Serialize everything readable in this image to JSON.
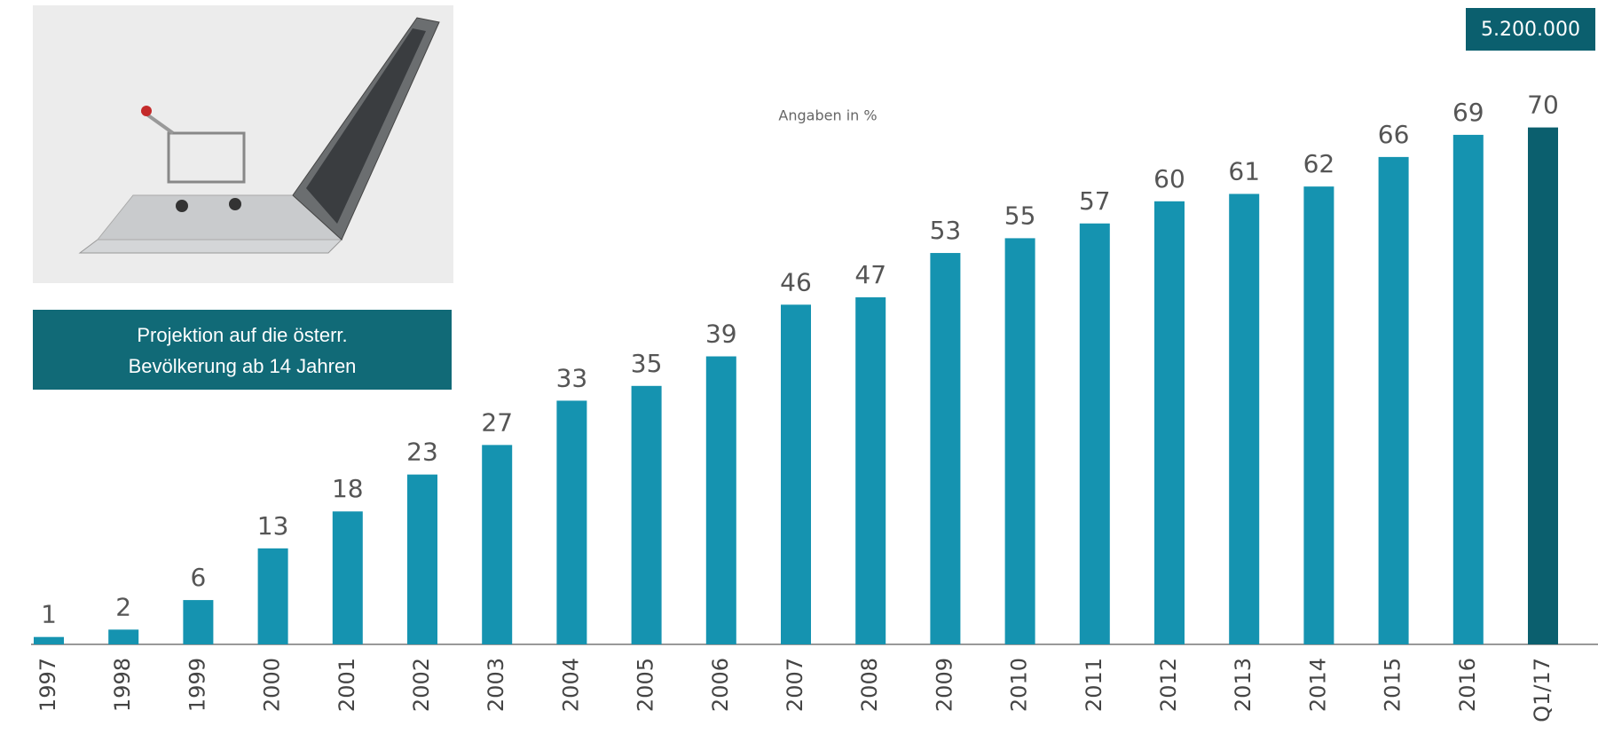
{
  "chart_data": {
    "type": "bar",
    "subtitle": "Angaben in %",
    "badge": "5.200.000",
    "note_lines": [
      "Projektion auf die österr.",
      "Bevölkerung ab 14 Jahren"
    ],
    "categories": [
      "1997",
      "1998",
      "1999",
      "2000",
      "2001",
      "2002",
      "2003",
      "2004",
      "2005",
      "2006",
      "2007",
      "2008",
      "2009",
      "2010",
      "2011",
      "2012",
      "2013",
      "2014",
      "2015",
      "2016",
      "Q1/17"
    ],
    "values": [
      1,
      2,
      6,
      13,
      18,
      23,
      27,
      33,
      35,
      39,
      46,
      47,
      53,
      55,
      57,
      60,
      61,
      62,
      66,
      69,
      70
    ],
    "colors": [
      "#1593b0",
      "#1593b0",
      "#1593b0",
      "#1593b0",
      "#1593b0",
      "#1593b0",
      "#1593b0",
      "#1593b0",
      "#1593b0",
      "#1593b0",
      "#1593b0",
      "#1593b0",
      "#1593b0",
      "#1593b0",
      "#1593b0",
      "#1593b0",
      "#1593b0",
      "#1593b0",
      "#1593b0",
      "#1593b0",
      "#0b5f6e"
    ]
  }
}
